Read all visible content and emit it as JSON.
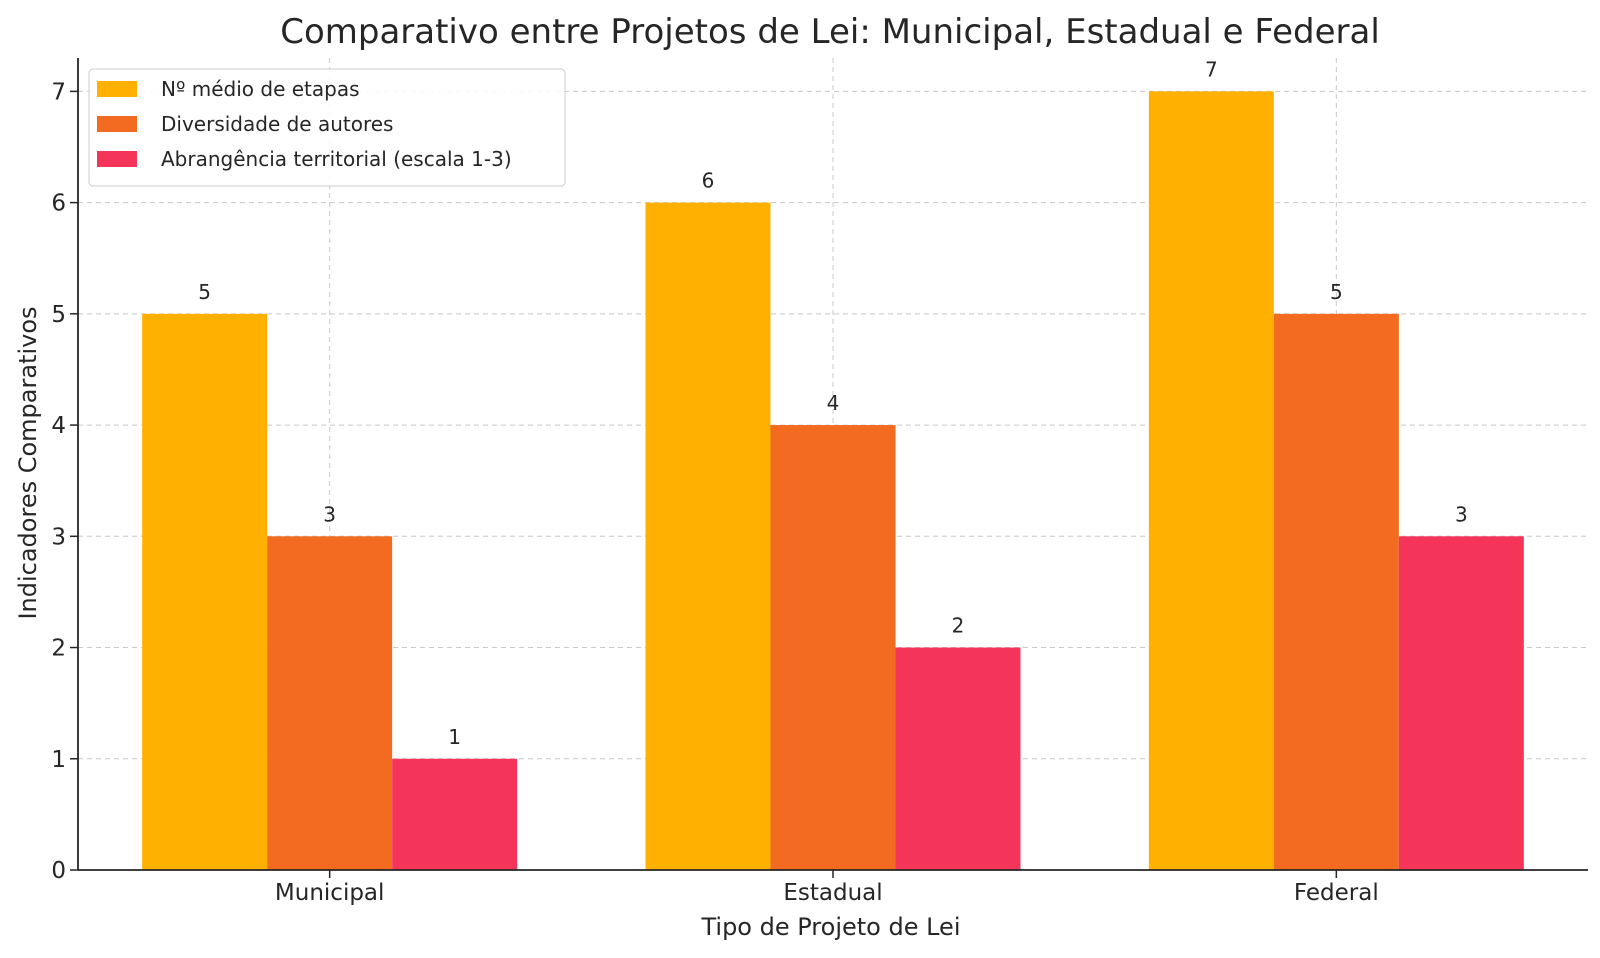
{
  "chart_data": {
    "type": "bar",
    "title": "Comparativo entre Projetos de Lei: Municipal, Estadual e Federal",
    "xlabel": "Tipo de Projeto de Lei",
    "ylabel": "Indicadores Comparativos",
    "categories": [
      "Municipal",
      "Estadual",
      "Federal"
    ],
    "series": [
      {
        "name": "Nº médio de etapas",
        "values": [
          5,
          6,
          7
        ],
        "color": "#FFB000"
      },
      {
        "name": "Diversidade de autores",
        "values": [
          3,
          4,
          5
        ],
        "color": "#F26B21"
      },
      {
        "name": "Abrangência territorial (escala 1-3)",
        "values": [
          1,
          2,
          3
        ],
        "color": "#F5345A"
      }
    ],
    "ylim": [
      0,
      7.3
    ],
    "yticks": [
      0,
      1,
      2,
      3,
      4,
      5,
      6,
      7
    ],
    "grid": true,
    "legend_position": "top-left",
    "data_labels": true
  }
}
